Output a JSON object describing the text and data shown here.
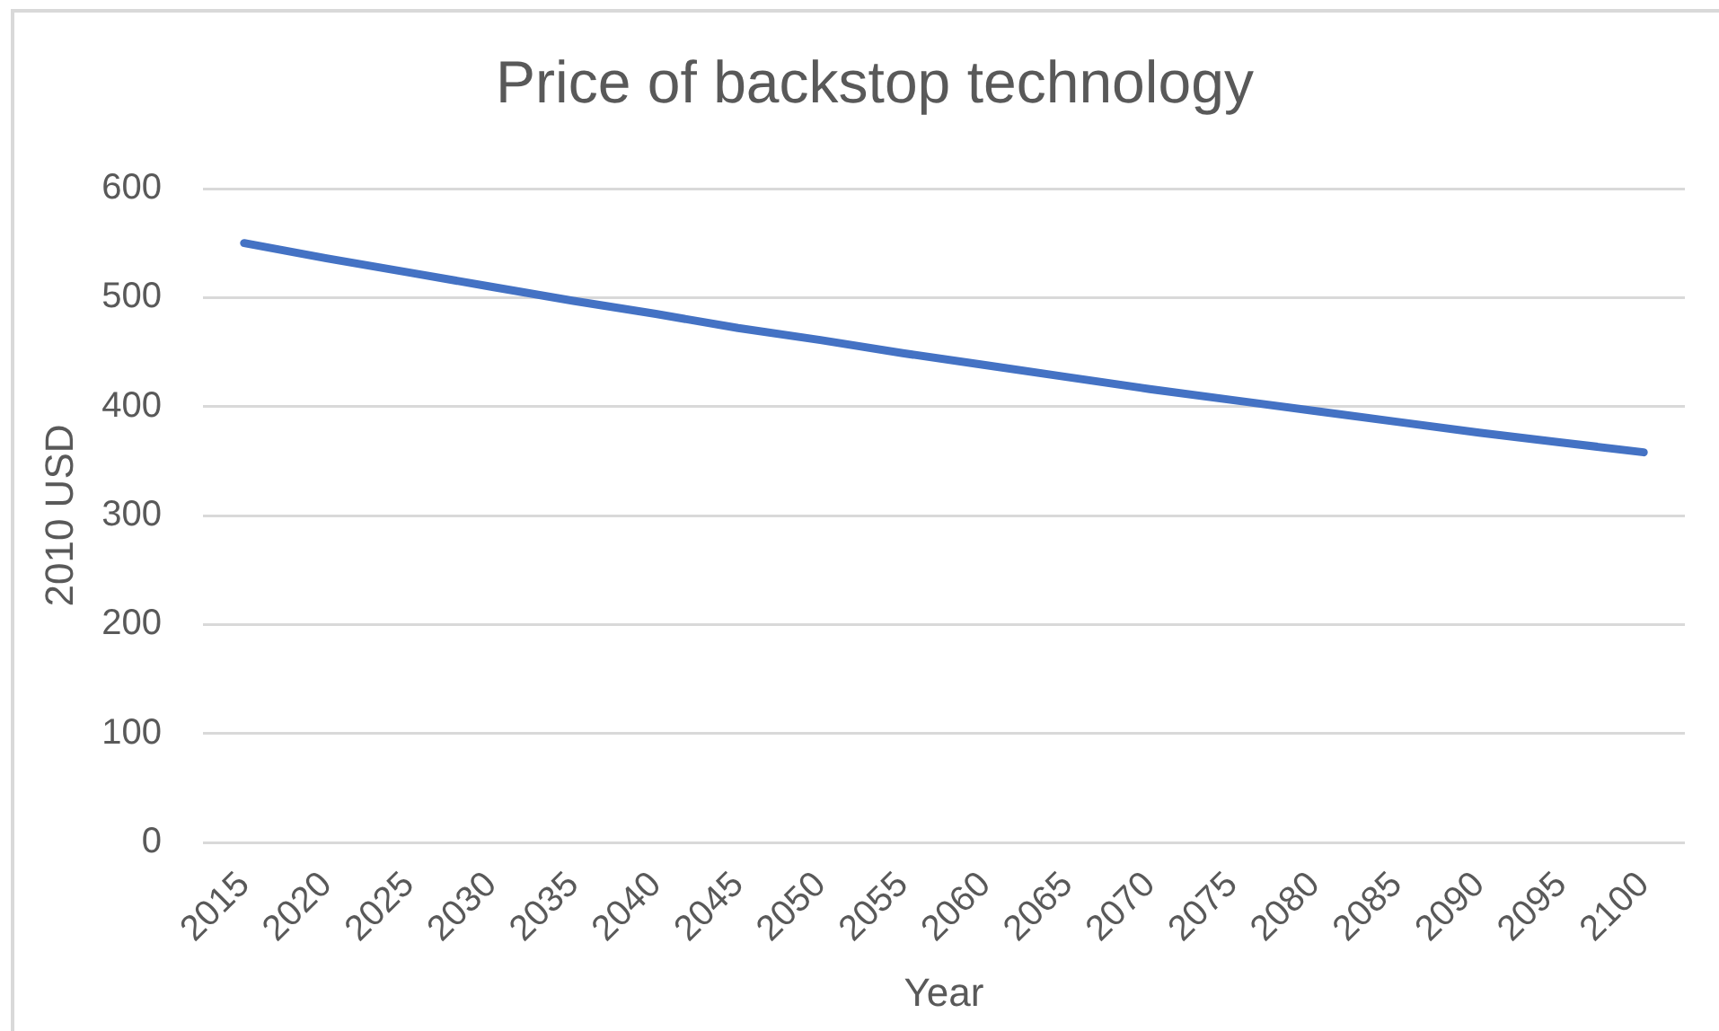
{
  "chart_data": {
    "type": "line",
    "title": "Price of backstop technology",
    "xlabel": "Year",
    "ylabel": "2010 USD",
    "categories": [
      "2015",
      "2020",
      "2025",
      "2030",
      "2035",
      "2040",
      "2045",
      "2050",
      "2055",
      "2060",
      "2065",
      "2070",
      "2075",
      "2080",
      "2085",
      "2090",
      "2095",
      "2100"
    ],
    "values": [
      550,
      536,
      523,
      510,
      497,
      485,
      472,
      461,
      449,
      438,
      427,
      416,
      406,
      396,
      386,
      376,
      367,
      358
    ],
    "color": "#4472c4",
    "ylim": [
      0,
      600
    ],
    "yticks": [
      0,
      100,
      200,
      300,
      400,
      500,
      600
    ],
    "grid": "y",
    "legend": false,
    "marker": "none",
    "line_style": "solid"
  }
}
